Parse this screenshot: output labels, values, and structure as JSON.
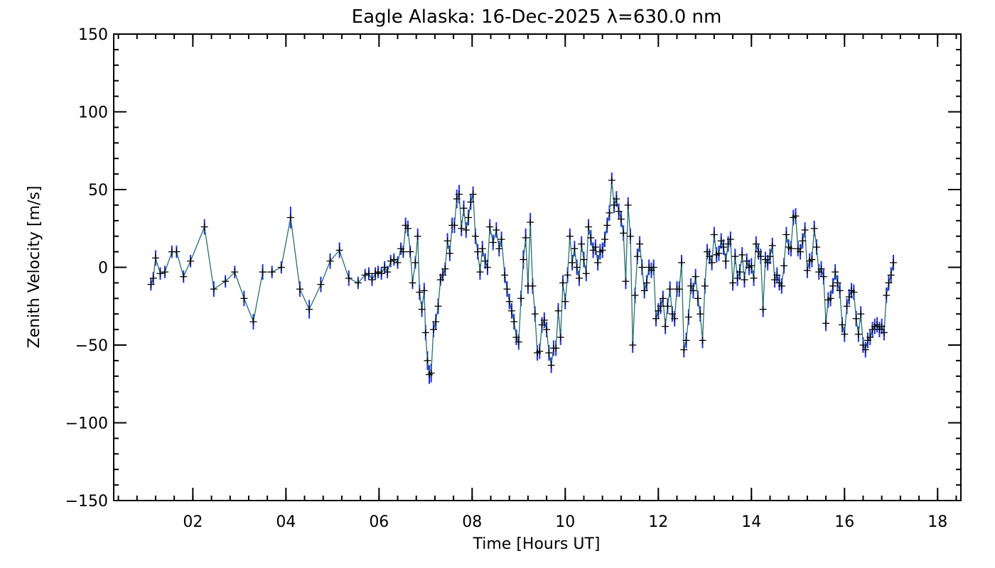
{
  "chart_data": {
    "type": "line",
    "title": "Eagle Alaska: 16-Dec-2025 λ=630.0 nm",
    "xlabel": "Time [Hours UT]",
    "ylabel": "Zenith Velocity [m/s]",
    "xlim": [
      0.3,
      18.5
    ],
    "ylim": [
      -150,
      150
    ],
    "xticks": [
      2,
      4,
      6,
      8,
      10,
      12,
      14,
      16,
      18
    ],
    "xtick_labels": [
      "02",
      "04",
      "06",
      "08",
      "10",
      "12",
      "14",
      "16",
      "18"
    ],
    "yticks": [
      -150,
      -100,
      -50,
      0,
      50,
      100,
      150
    ],
    "ytick_labels": [
      "−150",
      "−100",
      "−50",
      "0",
      "50",
      "100",
      "150"
    ],
    "x_minor_step": 0.4,
    "y_minor_step": 10,
    "colors": {
      "line": "#2a6e6e",
      "marker": "#000000",
      "errorbar": "#1f2fe0",
      "axis": "#000000"
    },
    "series": [
      {
        "name": "Zenith velocity",
        "marker": "plus",
        "points": [
          [
            1.1,
            -11,
            4
          ],
          [
            1.15,
            -7,
            4
          ],
          [
            1.2,
            6,
            5
          ],
          [
            1.3,
            -4,
            4
          ],
          [
            1.4,
            -3,
            4
          ],
          [
            1.55,
            10,
            4
          ],
          [
            1.65,
            10,
            4
          ],
          [
            1.8,
            -6,
            4
          ],
          [
            1.95,
            4,
            4
          ],
          [
            2.25,
            26,
            5
          ],
          [
            2.45,
            -14,
            5
          ],
          [
            2.7,
            -9,
            4
          ],
          [
            2.9,
            -3,
            4
          ],
          [
            3.1,
            -20,
            5
          ],
          [
            3.3,
            -35,
            5
          ],
          [
            3.5,
            -3,
            5
          ],
          [
            3.7,
            -3,
            4
          ],
          [
            3.9,
            0,
            4
          ],
          [
            4.1,
            32,
            7
          ],
          [
            4.3,
            -14,
            5
          ],
          [
            4.5,
            -27,
            6
          ],
          [
            4.75,
            -11,
            5
          ],
          [
            4.95,
            4,
            5
          ],
          [
            5.15,
            11,
            5
          ],
          [
            5.35,
            -7,
            5
          ],
          [
            5.55,
            -10,
            4
          ],
          [
            5.7,
            -5,
            4
          ],
          [
            5.78,
            -4,
            4
          ],
          [
            5.85,
            -8,
            4
          ],
          [
            5.92,
            -4,
            4
          ],
          [
            5.98,
            -3,
            4
          ],
          [
            6.05,
            -4,
            4
          ],
          [
            6.12,
            0,
            4
          ],
          [
            6.18,
            -3,
            4
          ],
          [
            6.25,
            4,
            4
          ],
          [
            6.32,
            5,
            4
          ],
          [
            6.4,
            3,
            4
          ],
          [
            6.47,
            12,
            4
          ],
          [
            6.52,
            10,
            4
          ],
          [
            6.57,
            27,
            5
          ],
          [
            6.62,
            25,
            5
          ],
          [
            6.67,
            10,
            4
          ],
          [
            6.72,
            -10,
            4
          ],
          [
            6.78,
            3,
            4
          ],
          [
            6.83,
            20,
            5
          ],
          [
            6.87,
            -16,
            5
          ],
          [
            6.92,
            -27,
            5
          ],
          [
            6.97,
            -15,
            5
          ],
          [
            7.0,
            -42,
            5
          ],
          [
            7.04,
            -60,
            6
          ],
          [
            7.08,
            -69,
            6
          ],
          [
            7.12,
            -68,
            6
          ],
          [
            7.17,
            -40,
            5
          ],
          [
            7.22,
            -35,
            5
          ],
          [
            7.27,
            -25,
            5
          ],
          [
            7.32,
            -8,
            4
          ],
          [
            7.37,
            -5,
            4
          ],
          [
            7.42,
            -1,
            4
          ],
          [
            7.47,
            17,
            5
          ],
          [
            7.52,
            9,
            5
          ],
          [
            7.57,
            27,
            5
          ],
          [
            7.62,
            27,
            5
          ],
          [
            7.67,
            44,
            6
          ],
          [
            7.72,
            47,
            6
          ],
          [
            7.77,
            25,
            5
          ],
          [
            7.82,
            38,
            5
          ],
          [
            7.87,
            24,
            5
          ],
          [
            7.92,
            32,
            5
          ],
          [
            7.97,
            42,
            5
          ],
          [
            8.02,
            47,
            5
          ],
          [
            8.07,
            20,
            5
          ],
          [
            8.12,
            10,
            5
          ],
          [
            8.17,
            -3,
            5
          ],
          [
            8.22,
            12,
            5
          ],
          [
            8.28,
            4,
            5
          ],
          [
            8.33,
            0,
            5
          ],
          [
            8.38,
            26,
            5
          ],
          [
            8.45,
            16,
            5
          ],
          [
            8.52,
            24,
            5
          ],
          [
            8.58,
            12,
            5
          ],
          [
            8.63,
            18,
            5
          ],
          [
            8.7,
            -5,
            5
          ],
          [
            8.75,
            -14,
            5
          ],
          [
            8.8,
            -22,
            5
          ],
          [
            8.85,
            -28,
            5
          ],
          [
            8.9,
            -35,
            5
          ],
          [
            8.95,
            -45,
            5
          ],
          [
            9.0,
            -48,
            5
          ],
          [
            9.05,
            -20,
            5
          ],
          [
            9.1,
            5,
            6
          ],
          [
            9.15,
            19,
            6
          ],
          [
            9.2,
            -12,
            5
          ],
          [
            9.25,
            29,
            6
          ],
          [
            9.3,
            -12,
            5
          ],
          [
            9.35,
            -30,
            5
          ],
          [
            9.4,
            -55,
            5
          ],
          [
            9.45,
            -54,
            5
          ],
          [
            9.5,
            -37,
            5
          ],
          [
            9.55,
            -34,
            5
          ],
          [
            9.6,
            -40,
            5
          ],
          [
            9.65,
            -55,
            5
          ],
          [
            9.7,
            -63,
            5
          ],
          [
            9.75,
            -52,
            5
          ],
          [
            9.8,
            -52,
            5
          ],
          [
            9.85,
            -28,
            5
          ],
          [
            9.9,
            -45,
            5
          ],
          [
            9.95,
            -10,
            5
          ],
          [
            10.0,
            -22,
            5
          ],
          [
            10.05,
            -5,
            5
          ],
          [
            10.1,
            20,
            5
          ],
          [
            10.15,
            3,
            5
          ],
          [
            10.2,
            12,
            5
          ],
          [
            10.25,
            0,
            5
          ],
          [
            10.3,
            -7,
            5
          ],
          [
            10.35,
            15,
            5
          ],
          [
            10.4,
            5,
            5
          ],
          [
            10.45,
            -4,
            5
          ],
          [
            10.5,
            26,
            5
          ],
          [
            10.55,
            19,
            5
          ],
          [
            10.6,
            11,
            5
          ],
          [
            10.65,
            13,
            5
          ],
          [
            10.7,
            3,
            5
          ],
          [
            10.75,
            10,
            5
          ],
          [
            10.8,
            11,
            5
          ],
          [
            10.85,
            18,
            5
          ],
          [
            10.9,
            27,
            5
          ],
          [
            10.95,
            35,
            5
          ],
          [
            11.0,
            56,
            5
          ],
          [
            11.05,
            40,
            5
          ],
          [
            11.1,
            44,
            5
          ],
          [
            11.15,
            36,
            5
          ],
          [
            11.2,
            31,
            5
          ],
          [
            11.25,
            22,
            5
          ],
          [
            11.3,
            -9,
            5
          ],
          [
            11.35,
            40,
            5
          ],
          [
            11.4,
            20,
            5
          ],
          [
            11.45,
            -50,
            5
          ],
          [
            11.5,
            -18,
            5
          ],
          [
            11.55,
            7,
            5
          ],
          [
            11.6,
            15,
            5
          ],
          [
            11.65,
            0,
            5
          ],
          [
            11.7,
            -15,
            5
          ],
          [
            11.75,
            -10,
            5
          ],
          [
            11.8,
            0,
            5
          ],
          [
            11.85,
            -2,
            5
          ],
          [
            11.9,
            0,
            5
          ],
          [
            11.95,
            -33,
            5
          ],
          [
            12.0,
            -28,
            5
          ],
          [
            12.05,
            -25,
            5
          ],
          [
            12.1,
            -20,
            5
          ],
          [
            12.15,
            -38,
            5
          ],
          [
            12.2,
            -25,
            5
          ],
          [
            12.25,
            -14,
            5
          ],
          [
            12.3,
            -30,
            5
          ],
          [
            12.35,
            -33,
            5
          ],
          [
            12.4,
            -14,
            5
          ],
          [
            12.45,
            -14,
            5
          ],
          [
            12.5,
            3,
            5
          ],
          [
            12.55,
            -53,
            5
          ],
          [
            12.6,
            -47,
            5
          ],
          [
            12.65,
            -32,
            5
          ],
          [
            12.7,
            -12,
            5
          ],
          [
            12.75,
            -15,
            5
          ],
          [
            12.8,
            -6,
            5
          ],
          [
            12.85,
            -20,
            5
          ],
          [
            12.9,
            -30,
            5
          ],
          [
            12.95,
            -47,
            5
          ],
          [
            13.0,
            -12,
            5
          ],
          [
            13.05,
            10,
            5
          ],
          [
            13.1,
            7,
            5
          ],
          [
            13.15,
            3,
            5
          ],
          [
            13.2,
            21,
            5
          ],
          [
            13.25,
            8,
            5
          ],
          [
            13.3,
            9,
            5
          ],
          [
            13.35,
            17,
            5
          ],
          [
            13.4,
            13,
            5
          ],
          [
            13.45,
            4,
            5
          ],
          [
            13.5,
            15,
            5
          ],
          [
            13.55,
            18,
            5
          ],
          [
            13.6,
            -10,
            5
          ],
          [
            13.65,
            7,
            5
          ],
          [
            13.7,
            -7,
            5
          ],
          [
            13.75,
            -3,
            5
          ],
          [
            13.8,
            8,
            5
          ],
          [
            13.85,
            -8,
            5
          ],
          [
            13.9,
            4,
            5
          ],
          [
            13.95,
            0,
            5
          ],
          [
            14.0,
            1,
            5
          ],
          [
            14.05,
            -7,
            5
          ],
          [
            14.1,
            15,
            5
          ],
          [
            14.15,
            10,
            5
          ],
          [
            14.2,
            7,
            5
          ],
          [
            14.25,
            -27,
            5
          ],
          [
            14.3,
            5,
            5
          ],
          [
            14.35,
            3,
            5
          ],
          [
            14.4,
            7,
            5
          ],
          [
            14.45,
            14,
            5
          ],
          [
            14.5,
            -8,
            5
          ],
          [
            14.55,
            -5,
            5
          ],
          [
            14.6,
            -10,
            5
          ],
          [
            14.65,
            -12,
            5
          ],
          [
            14.7,
            1,
            5
          ],
          [
            14.75,
            21,
            5
          ],
          [
            14.8,
            13,
            5
          ],
          [
            14.85,
            12,
            5
          ],
          [
            14.9,
            32,
            5
          ],
          [
            14.95,
            33,
            5
          ],
          [
            15.0,
            12,
            5
          ],
          [
            15.05,
            10,
            5
          ],
          [
            15.1,
            17,
            5
          ],
          [
            15.15,
            24,
            5
          ],
          [
            15.2,
            -2,
            5
          ],
          [
            15.25,
            4,
            5
          ],
          [
            15.3,
            5,
            5
          ],
          [
            15.35,
            25,
            5
          ],
          [
            15.4,
            13,
            5
          ],
          [
            15.45,
            -3,
            5
          ],
          [
            15.5,
            -1,
            5
          ],
          [
            15.55,
            -6,
            5
          ],
          [
            15.6,
            -36,
            5
          ],
          [
            15.65,
            -21,
            5
          ],
          [
            15.7,
            -20,
            5
          ],
          [
            15.75,
            -12,
            5
          ],
          [
            15.8,
            -3,
            5
          ],
          [
            15.85,
            -10,
            5
          ],
          [
            15.9,
            -15,
            5
          ],
          [
            15.95,
            -37,
            5
          ],
          [
            16.0,
            -43,
            5
          ],
          [
            16.05,
            -25,
            5
          ],
          [
            16.1,
            -19,
            5
          ],
          [
            16.15,
            -15,
            5
          ],
          [
            16.2,
            -16,
            5
          ],
          [
            16.25,
            -33,
            5
          ],
          [
            16.3,
            -43,
            5
          ],
          [
            16.35,
            -30,
            5
          ],
          [
            16.4,
            -50,
            5
          ],
          [
            16.45,
            -53,
            5
          ],
          [
            16.5,
            -47,
            5
          ],
          [
            16.55,
            -45,
            5
          ],
          [
            16.6,
            -40,
            5
          ],
          [
            16.65,
            -38,
            5
          ],
          [
            16.7,
            -37,
            5
          ],
          [
            16.75,
            -40,
            5
          ],
          [
            16.8,
            -38,
            5
          ],
          [
            16.85,
            -42,
            5
          ],
          [
            16.9,
            -18,
            5
          ],
          [
            16.95,
            -10,
            5
          ],
          [
            17.0,
            -5,
            5
          ],
          [
            17.05,
            3,
            5
          ]
        ]
      }
    ]
  }
}
